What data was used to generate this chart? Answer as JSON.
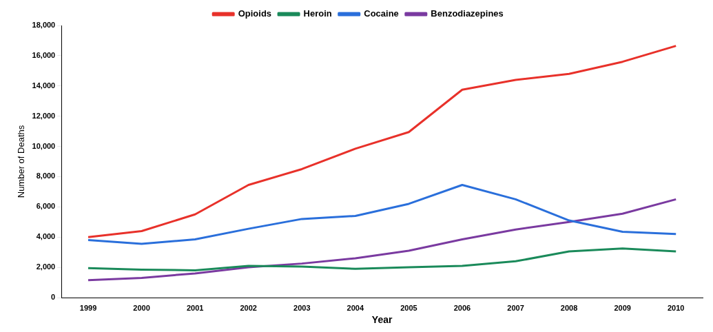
{
  "chart_data": {
    "type": "line",
    "xlabel": "Year",
    "ylabel": "Number of Deaths",
    "categories": [
      "1999",
      "2000",
      "2001",
      "2002",
      "2003",
      "2004",
      "2005",
      "2006",
      "2007",
      "2008",
      "2009",
      "2010"
    ],
    "series": [
      {
        "name": "Opioids",
        "color": "#e8312a",
        "values": [
          4000,
          4400,
          5500,
          7450,
          8500,
          9850,
          10950,
          13750,
          14400,
          14800,
          15600,
          16650
        ]
      },
      {
        "name": "Heroin",
        "color": "#1a8a5a",
        "values": [
          1950,
          1850,
          1800,
          2100,
          2050,
          1900,
          2000,
          2100,
          2400,
          3050,
          3250,
          3050
        ]
      },
      {
        "name": "Cocaine",
        "color": "#2a6fdb",
        "values": [
          3800,
          3550,
          3850,
          4550,
          5200,
          5400,
          6200,
          7450,
          6500,
          5100,
          4350,
          4200
        ]
      },
      {
        "name": "Benzodiazepines",
        "color": "#7a3aa0",
        "values": [
          1150,
          1300,
          1600,
          2000,
          2250,
          2600,
          3100,
          3850,
          4500,
          5000,
          5550,
          6500
        ]
      }
    ],
    "ylim": [
      0,
      18000
    ],
    "yticks": [
      {
        "value": 0,
        "label": "0"
      },
      {
        "value": 2000,
        "label": "2,000"
      },
      {
        "value": 4000,
        "label": "4,000"
      },
      {
        "value": 6000,
        "label": "6,000"
      },
      {
        "value": 8000,
        "label": "8,000"
      },
      {
        "value": 10000,
        "label": "10,000"
      },
      {
        "value": 12000,
        "label": "12,000"
      },
      {
        "value": 14000,
        "label": "14,000"
      },
      {
        "value": 16000,
        "label": "16,000"
      },
      {
        "value": 18000,
        "label": "18,000"
      }
    ],
    "grid": false,
    "legend": "top",
    "marker": "none",
    "line_style": "solid"
  }
}
